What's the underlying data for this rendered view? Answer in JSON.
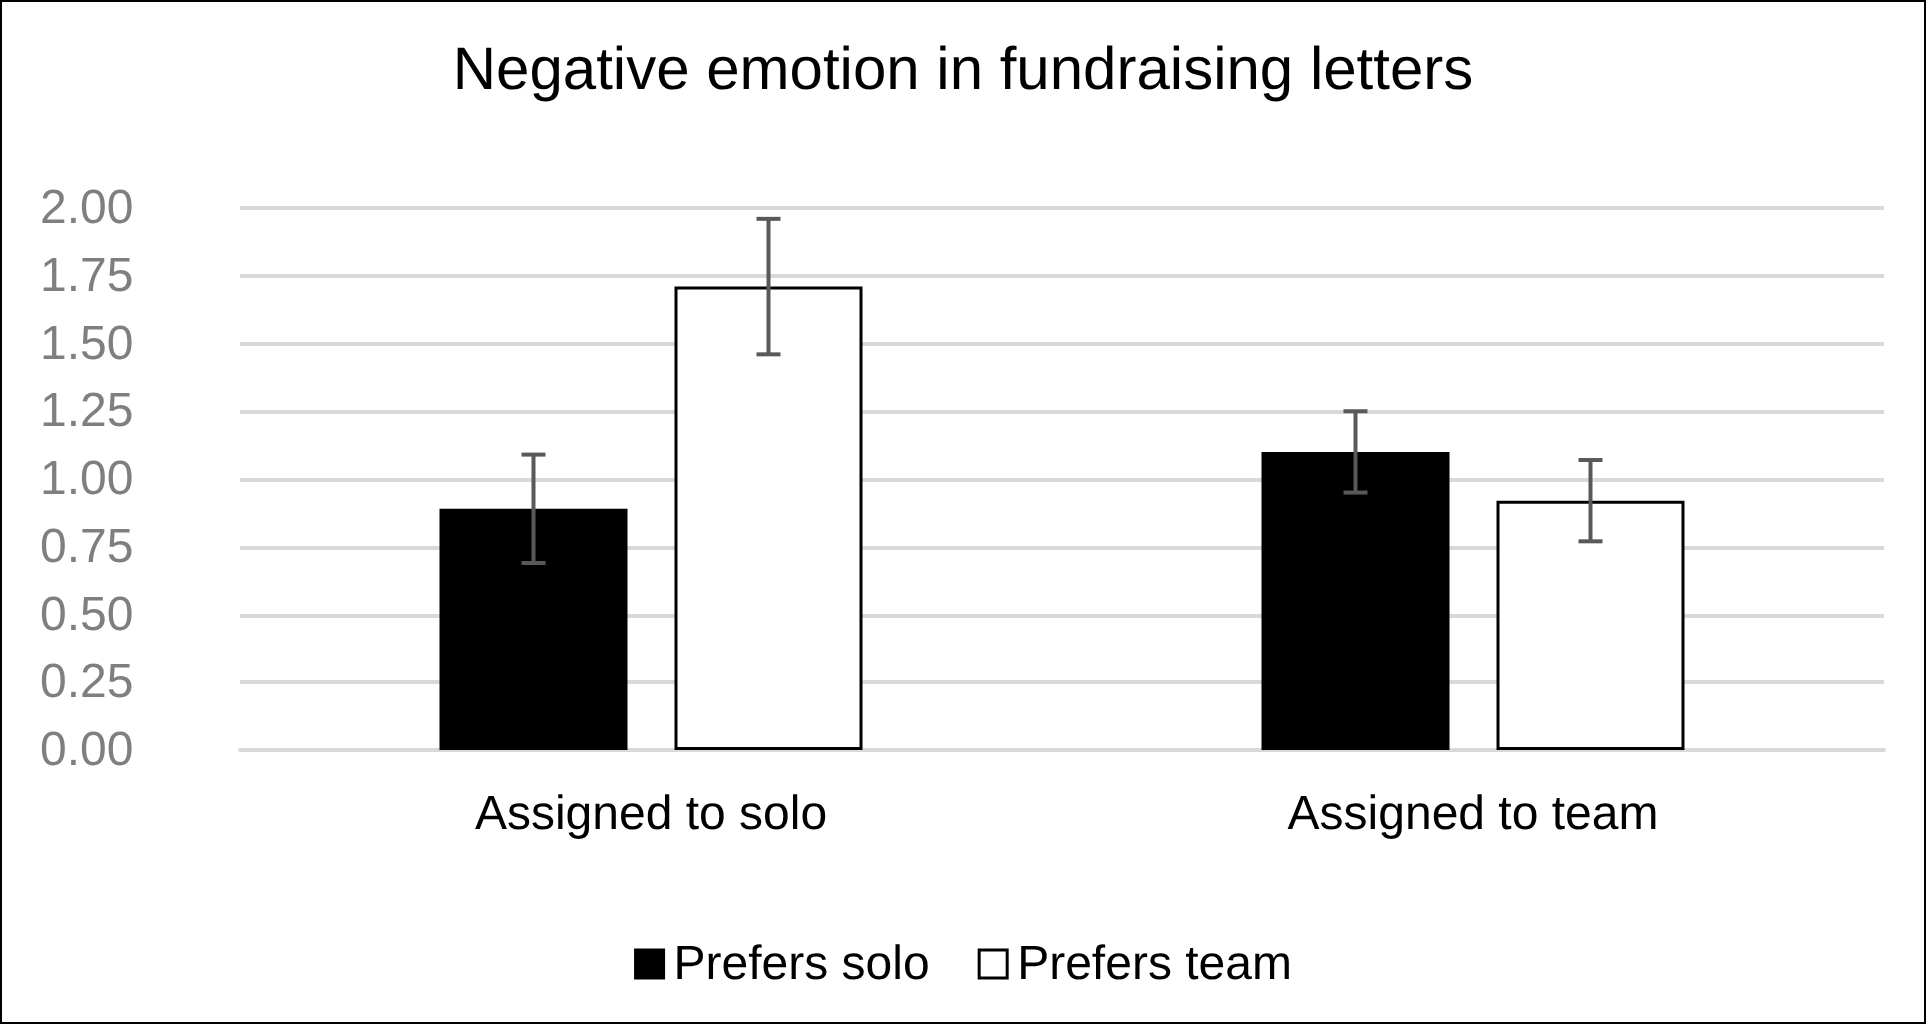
{
  "chart_data": {
    "type": "bar",
    "title": "Negative emotion in fundraising letters",
    "categories": [
      "Assigned to solo",
      "Assigned to team"
    ],
    "series": [
      {
        "name": "Prefers solo",
        "color": "#000000",
        "values": [
          0.89,
          1.1
        ],
        "errors": [
          0.2,
          0.15
        ]
      },
      {
        "name": "Prefers team",
        "color": "#ffffff",
        "values": [
          1.71,
          0.92
        ],
        "errors": [
          0.25,
          0.15
        ]
      }
    ],
    "ylim": [
      0,
      2
    ],
    "yticks": [
      {
        "value": 0,
        "label": "0.00"
      },
      0.25,
      {
        "value": 0.5,
        "label": "0.50"
      },
      0.75,
      {
        "value": 1,
        "label": "1.00"
      },
      1.25,
      {
        "value": 1.5,
        "label": "1.50"
      },
      1.75,
      {
        "value": 2,
        "label": "2.00"
      }
    ],
    "grid": "y",
    "legend": "bottom"
  }
}
